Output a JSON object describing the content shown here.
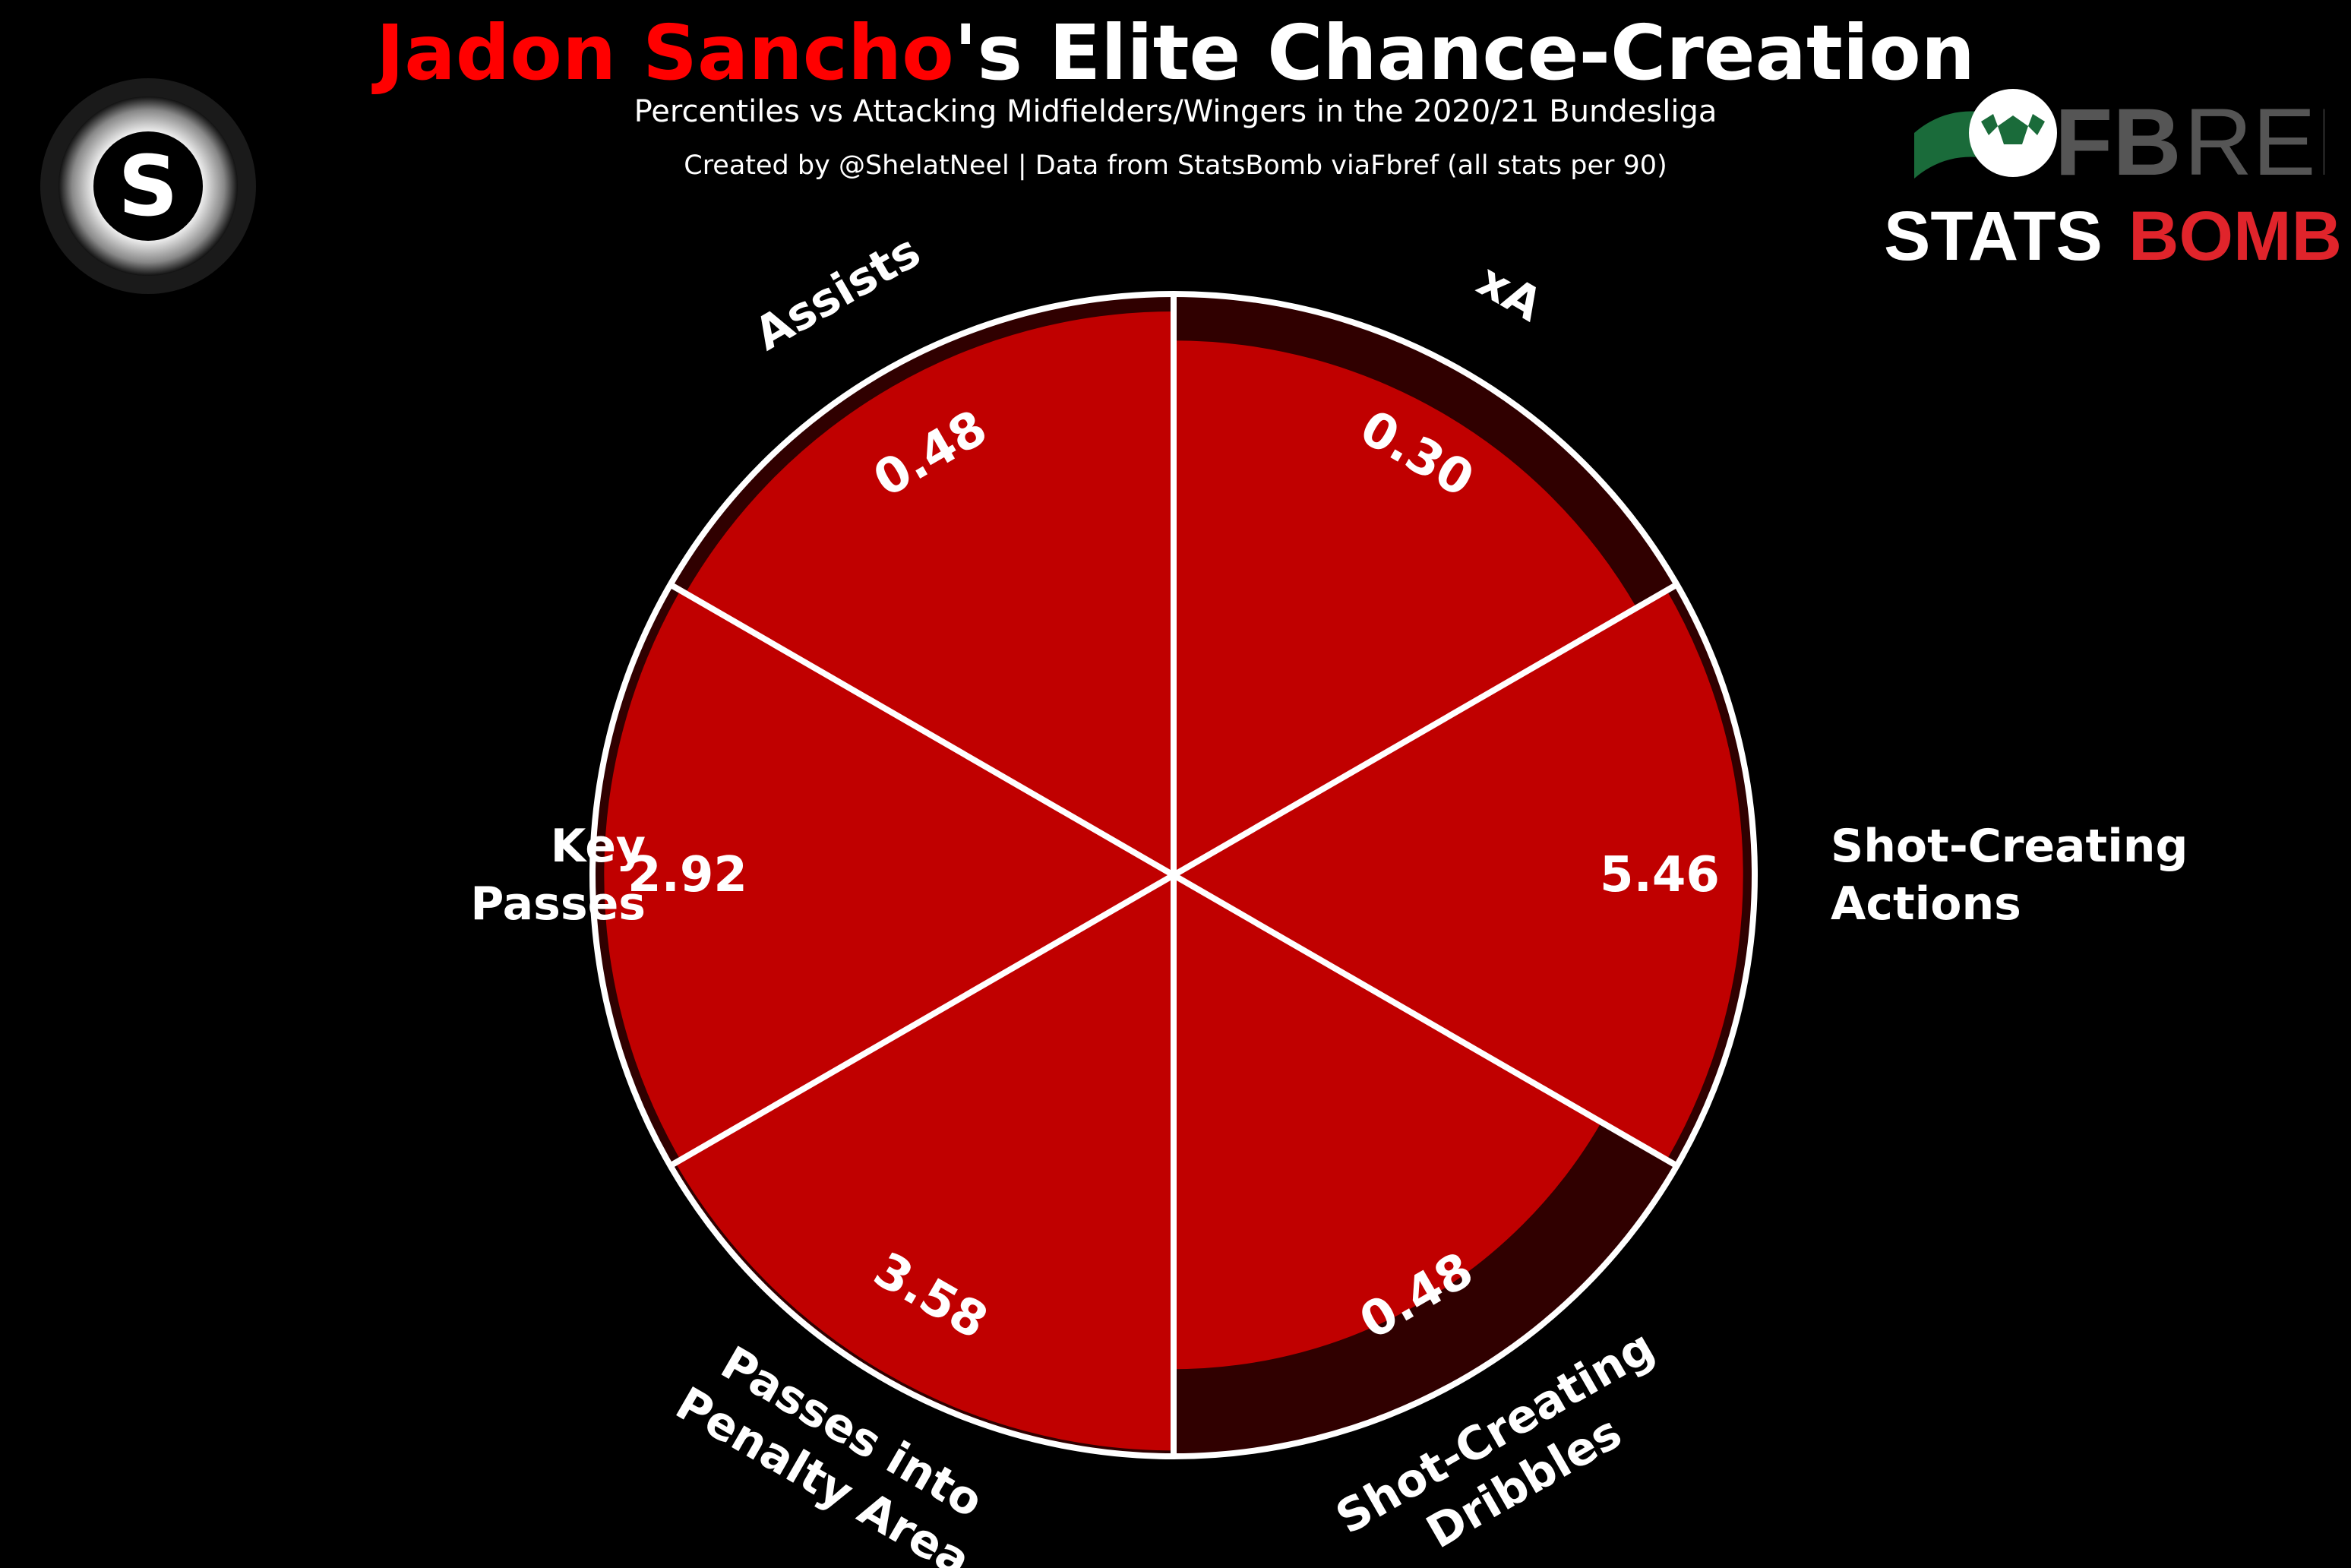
{
  "header": {
    "title_highlight": "Jadon Sancho",
    "title_rest": "'s Elite Chance-Creation",
    "subtitle": "Percentiles vs Attacking Midfielders/Wingers in the 2020/21 Bundesliga",
    "credit": "Created by @ShelatNeel | Data from StatsBomb viaFbref (all stats per 90)"
  },
  "logos": {
    "left_logo_letter": "S",
    "fbref_text_fb": "FB",
    "fbref_text_ref": "REF",
    "statsbomb_text_stats": "STATS",
    "statsbomb_text_bomb": "BOMB"
  },
  "colors": {
    "background": "#000000",
    "slice_fill": "#c00000",
    "slice_track": "#300000",
    "highlight": "#ff0000",
    "outline": "#ffffff",
    "fbref_green": "#1a6b3a",
    "fbref_grey": "#555555",
    "statsbomb_red": "#e0242b"
  },
  "chart_data": {
    "type": "pie",
    "variant": "radial percentile wedges",
    "title": "Jadon Sancho's Elite Chance-Creation",
    "subtitle": "Percentiles vs Attacking Midfielders/Wingers in the 2020/21 Bundesliga",
    "percentile_range": [
      0,
      100
    ],
    "slices": [
      {
        "label": "xA",
        "value_label": "0.30",
        "percentile": 92
      },
      {
        "label": "Shot-Creating Actions",
        "value_label": "5.46",
        "percentile": 98
      },
      {
        "label": "Shot-Creating Dribbles",
        "value_label": "0.48",
        "percentile": 85
      },
      {
        "label": "Passes into Penalty Area",
        "value_label": "3.58",
        "percentile": 99
      },
      {
        "label": "Key Passes",
        "value_label": "2.92",
        "percentile": 98
      },
      {
        "label": "Assists",
        "value_label": "0.48",
        "percentile": 97
      }
    ]
  }
}
